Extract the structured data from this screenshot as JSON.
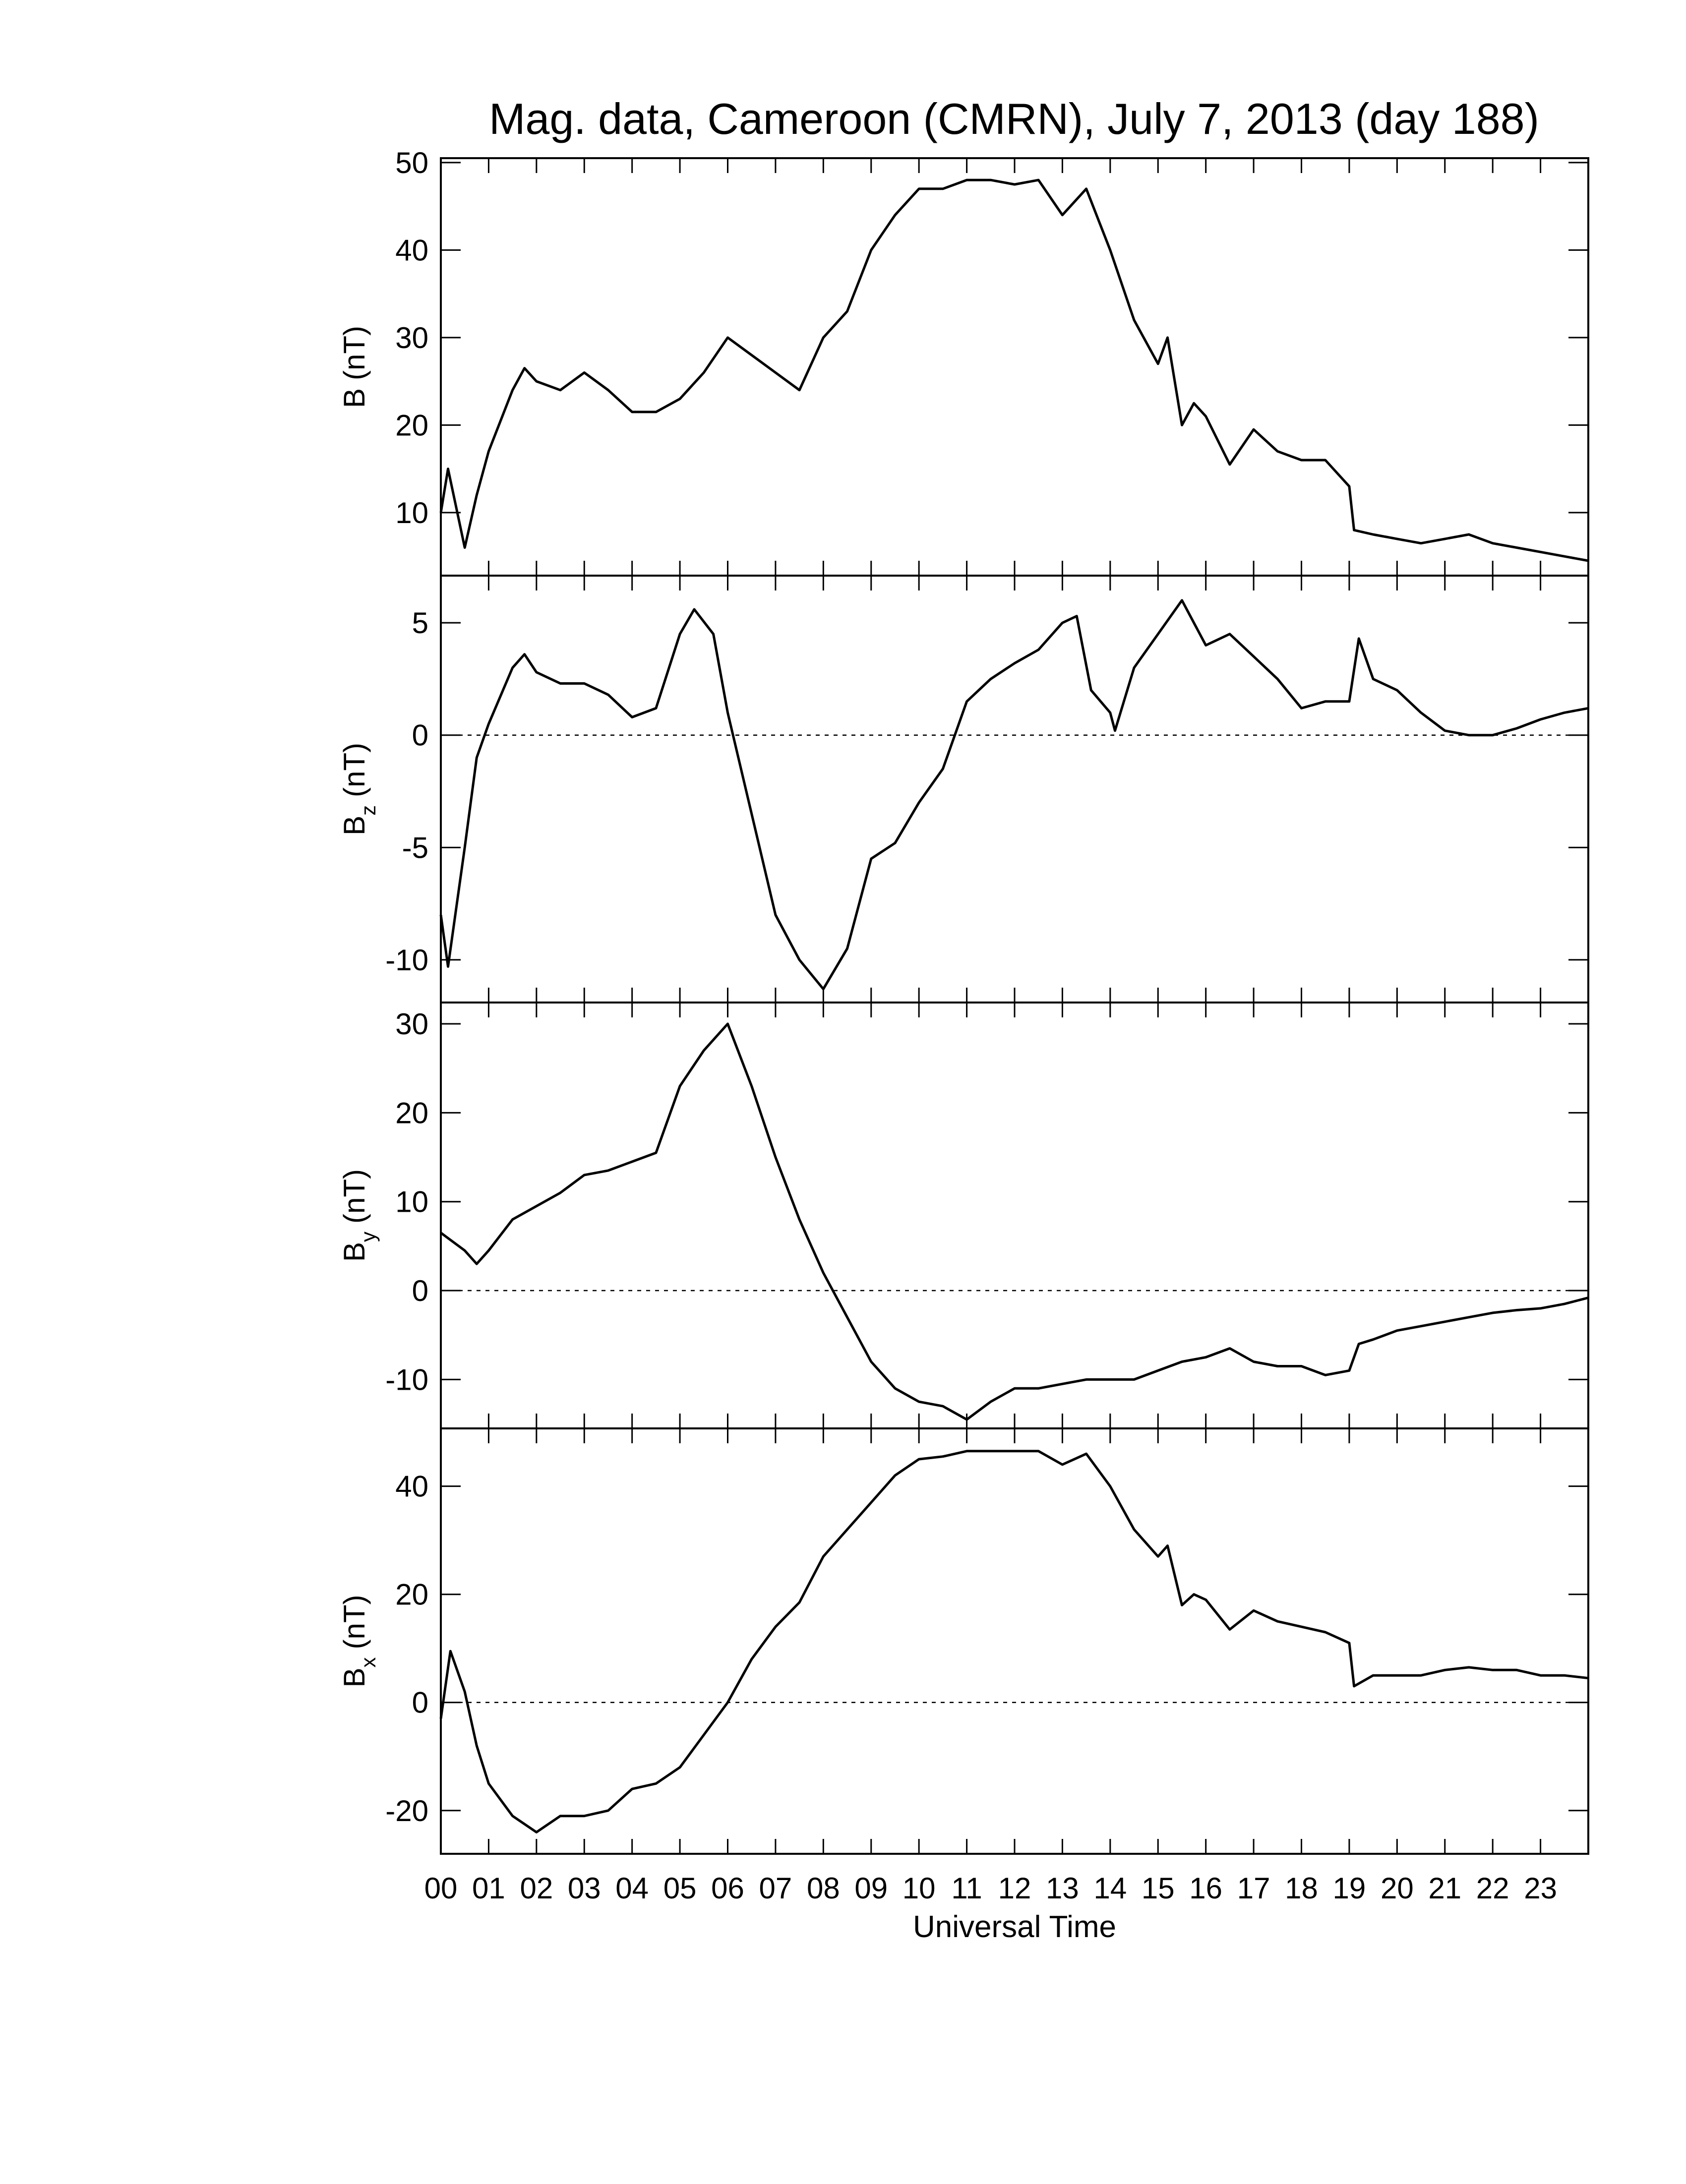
{
  "chart_data": [
    {
      "type": "line",
      "title": "Mag. data, Cameroon (CMRN), July 7, 2013 (day 188)",
      "ylabel": "B",
      "ylabel_unit": "(nT)",
      "xlim": [
        0,
        24
      ],
      "ylim": [
        2.8,
        50.5
      ],
      "yticks": [
        10,
        20,
        30,
        40,
        50
      ],
      "zero_line": false,
      "series": [
        {
          "name": "B",
          "color": "#000000",
          "x": [
            0,
            0.15,
            0.5,
            0.75,
            1,
            1.5,
            1.75,
            2,
            2.5,
            3,
            3.5,
            4,
            4.5,
            5,
            5.5,
            6,
            6.5,
            7,
            7.5,
            8,
            8.5,
            9,
            9.5,
            10,
            10.5,
            11,
            11.5,
            12,
            12.5,
            13,
            13.5,
            14,
            14.5,
            15,
            15.2,
            15.5,
            15.75,
            16,
            16.5,
            17,
            17.5,
            18,
            18.5,
            19,
            19.1,
            19.5,
            20,
            20.5,
            21,
            21.5,
            22,
            22.5,
            23,
            23.5,
            24
          ],
          "values": [
            10,
            15,
            6,
            12,
            17,
            24,
            26.5,
            25,
            24,
            26,
            24,
            21.5,
            21.5,
            23,
            26,
            30,
            28,
            26,
            24,
            30,
            33,
            40,
            44,
            47,
            47,
            48,
            48,
            47.5,
            48,
            44,
            47,
            40,
            32,
            27,
            30,
            20,
            22.5,
            21,
            15.5,
            19.5,
            17,
            16,
            16,
            13,
            8,
            7.5,
            7,
            6.5,
            7,
            7.5,
            6.5,
            6,
            5.5,
            5,
            4.5
          ]
        }
      ]
    },
    {
      "type": "line",
      "ylabel": "B",
      "ylabel_sub": "z",
      "ylabel_unit": "(nT)",
      "xlim": [
        0,
        24
      ],
      "ylim": [
        -11.9,
        7.1
      ],
      "yticks": [
        -10,
        -5,
        0,
        5
      ],
      "zero_line": true,
      "series": [
        {
          "name": "Bz",
          "color": "#000000",
          "x": [
            0,
            0.15,
            0.5,
            0.75,
            1,
            1.5,
            1.75,
            2,
            2.5,
            3,
            3.5,
            4,
            4.5,
            5,
            5.3,
            5.7,
            6,
            6.5,
            7,
            7.5,
            8,
            8.5,
            9,
            9.5,
            10,
            10.5,
            11,
            11.5,
            12,
            12.5,
            13,
            13.3,
            13.6,
            14,
            14.1,
            14.5,
            15,
            15.5,
            16,
            16.5,
            17,
            17.5,
            18,
            18.5,
            19,
            19.2,
            19.5,
            20,
            20.5,
            21,
            21.5,
            22,
            22.5,
            23,
            23.5,
            24
          ],
          "values": [
            -8,
            -10.3,
            -5,
            -1,
            0.5,
            3,
            3.6,
            2.8,
            2.3,
            2.3,
            1.8,
            0.8,
            1.2,
            4.5,
            5.6,
            4.5,
            1,
            -3.5,
            -8,
            -10,
            -11.3,
            -9.5,
            -5.5,
            -4.8,
            -3,
            -1.5,
            1.5,
            2.5,
            3.2,
            3.8,
            5,
            5.3,
            2,
            1,
            0.2,
            3,
            4.5,
            6,
            4,
            4.5,
            3.5,
            2.5,
            1.2,
            1.5,
            1.5,
            4.3,
            2.5,
            2,
            1,
            0.2,
            0,
            0,
            0.3,
            0.7,
            1,
            1.2
          ]
        }
      ]
    },
    {
      "type": "line",
      "ylabel": "B",
      "ylabel_sub": "y",
      "ylabel_unit": "(nT)",
      "xlim": [
        0,
        24
      ],
      "ylim": [
        -15.5,
        32.4
      ],
      "yticks": [
        -10,
        0,
        10,
        20,
        30
      ],
      "zero_line": true,
      "series": [
        {
          "name": "By",
          "color": "#000000",
          "x": [
            0,
            0.5,
            0.75,
            1,
            1.5,
            2,
            2.5,
            3,
            3.5,
            4,
            4.5,
            5,
            5.5,
            6,
            6.5,
            7,
            7.5,
            8,
            8.5,
            9,
            9.5,
            10,
            10.5,
            11,
            11.5,
            12,
            12.5,
            13,
            13.5,
            14,
            14.5,
            15,
            15.5,
            16,
            16.5,
            17,
            17.5,
            18,
            18.5,
            19,
            19.2,
            19.5,
            20,
            20.5,
            21,
            21.5,
            22,
            22.5,
            23,
            23.5,
            24
          ],
          "values": [
            6.5,
            4.5,
            3,
            4.5,
            8,
            9.5,
            11,
            13,
            13.5,
            14.5,
            15.5,
            23,
            27,
            30,
            23,
            15,
            8,
            2,
            -3,
            -8,
            -11,
            -12.5,
            -13,
            -14.5,
            -12.5,
            -11,
            -11,
            -10.5,
            -10,
            -10,
            -10,
            -9,
            -8,
            -7.5,
            -6.5,
            -8,
            -8.5,
            -8.5,
            -9.5,
            -9,
            -6,
            -5.5,
            -4.5,
            -4,
            -3.5,
            -3,
            -2.5,
            -2.2,
            -2,
            -1.5,
            -0.8
          ]
        }
      ]
    },
    {
      "type": "line",
      "ylabel": "B",
      "ylabel_sub": "x",
      "ylabel_unit": "(nT)",
      "xlabel": "Universal Time",
      "xlim": [
        0,
        24
      ],
      "ylim": [
        -28.0,
        50.7
      ],
      "yticks": [
        -20,
        0,
        20,
        40
      ],
      "zero_line": true,
      "xticks": [
        {
          "value": 0,
          "label": "00"
        },
        {
          "value": 1,
          "label": "01"
        },
        {
          "value": 2,
          "label": "02"
        },
        {
          "value": 3,
          "label": "03"
        },
        {
          "value": 4,
          "label": "04"
        },
        {
          "value": 5,
          "label": "05"
        },
        {
          "value": 6,
          "label": "06"
        },
        {
          "value": 7,
          "label": "07"
        },
        {
          "value": 8,
          "label": "08"
        },
        {
          "value": 9,
          "label": "09"
        },
        10,
        11,
        12,
        13,
        14,
        15,
        16,
        17,
        18,
        19,
        20,
        21,
        22,
        23
      ],
      "series": [
        {
          "name": "Bx",
          "color": "#000000",
          "x": [
            0,
            0.2,
            0.5,
            0.75,
            1,
            1.5,
            2,
            2.5,
            3,
            3.5,
            4,
            4.5,
            5,
            5.5,
            6,
            6.5,
            7,
            7.5,
            8,
            8.5,
            9,
            9.5,
            10,
            10.5,
            11,
            11.5,
            12,
            12.5,
            13,
            13.5,
            14,
            14.5,
            15,
            15.2,
            15.5,
            15.75,
            16,
            16.5,
            17,
            17.5,
            18,
            18.5,
            19,
            19.1,
            19.5,
            20,
            20.5,
            21,
            21.5,
            22,
            22.5,
            23,
            23.5,
            24
          ],
          "values": [
            -3,
            9.5,
            2,
            -8,
            -15,
            -21,
            -24,
            -21,
            -21,
            -20,
            -16,
            -15,
            -12,
            -6,
            0,
            8,
            14,
            18.5,
            27,
            32,
            37,
            42,
            45,
            45.5,
            46.5,
            46.5,
            46.5,
            46.5,
            44,
            46,
            40,
            32,
            27,
            29,
            18,
            20,
            19,
            13.5,
            17,
            15,
            14,
            13,
            11,
            3,
            5,
            5,
            5,
            6,
            6.5,
            6,
            6,
            5,
            5,
            4.5
          ]
        }
      ]
    }
  ]
}
